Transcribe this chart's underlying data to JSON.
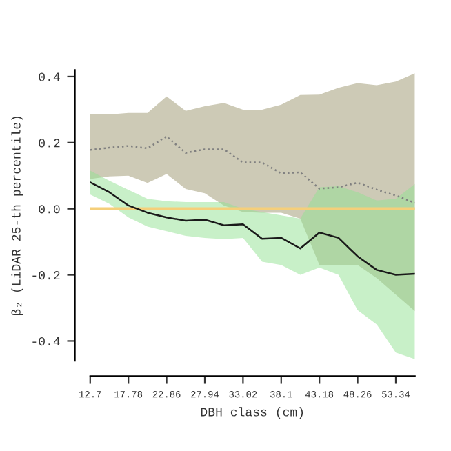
{
  "chart_data": {
    "type": "line",
    "xlabel": "DBH class (cm)",
    "ylabel": "β₂ (LiDAR 25-th percentile)",
    "x": [
      12.7,
      15.24,
      17.78,
      20.32,
      22.86,
      25.4,
      27.94,
      30.48,
      33.02,
      35.56,
      38.1,
      40.64,
      43.18,
      45.72,
      48.26,
      50.8,
      53.34,
      55.88
    ],
    "series": [
      {
        "color": "#808080",
        "line_style": "dotted",
        "values": [
          0.178,
          0.185,
          0.19,
          0.183,
          0.219,
          0.169,
          0.18,
          0.18,
          0.14,
          0.14,
          0.107,
          0.11,
          0.061,
          0.065,
          0.079,
          0.058,
          0.04,
          0.018
        ],
        "upper": [
          0.285,
          0.285,
          0.29,
          0.29,
          0.34,
          0.296,
          0.31,
          0.32,
          0.3,
          0.3,
          0.315,
          0.344,
          0.345,
          0.366,
          0.38,
          0.374,
          0.385,
          0.41
        ],
        "lower": [
          0.09,
          0.098,
          0.1,
          0.078,
          0.105,
          0.06,
          0.047,
          0.01,
          -0.01,
          -0.012,
          -0.012,
          -0.03,
          -0.17,
          -0.17,
          -0.17,
          -0.21,
          -0.26,
          -0.31
        ]
      },
      {
        "color": "#1a1a1a",
        "line_style": "solid",
        "values": [
          0.08,
          0.05,
          0.01,
          -0.012,
          -0.026,
          -0.036,
          -0.033,
          -0.05,
          -0.047,
          -0.091,
          -0.088,
          -0.12,
          -0.072,
          -0.088,
          -0.144,
          -0.185,
          -0.2,
          -0.197
        ],
        "upper": [
          0.115,
          0.085,
          0.057,
          0.03,
          0.023,
          0.02,
          0.02,
          0.02,
          0.0,
          -0.01,
          -0.02,
          -0.03,
          0.065,
          0.068,
          0.05,
          0.025,
          0.03,
          0.075
        ],
        "lower": [
          0.043,
          0.015,
          -0.026,
          -0.054,
          -0.068,
          -0.082,
          -0.088,
          -0.092,
          -0.088,
          -0.16,
          -0.17,
          -0.2,
          -0.178,
          -0.2,
          -0.307,
          -0.35,
          -0.435,
          -0.455
        ]
      }
    ],
    "ref_lines": [
      {
        "axis": "y",
        "value": 0,
        "color": "#f5cf7a"
      }
    ],
    "xlim": [
      12.7,
      55.88
    ],
    "ylim": [
      -0.46,
      0.42
    ],
    "xticks": [
      12.7,
      17.78,
      22.86,
      27.94,
      33.02,
      38.1,
      43.18,
      48.26,
      53.34
    ],
    "yticks": [
      {
        "value": -0.4,
        "label": "-0.4"
      },
      {
        "value": -0.2,
        "label": "-0.2"
      },
      {
        "value": 0,
        "label": "0.0"
      },
      {
        "value": 0.2,
        "label": "0.2"
      },
      {
        "value": 0.4,
        "label": "0.4"
      }
    ],
    "grid": false,
    "legend": false
  }
}
